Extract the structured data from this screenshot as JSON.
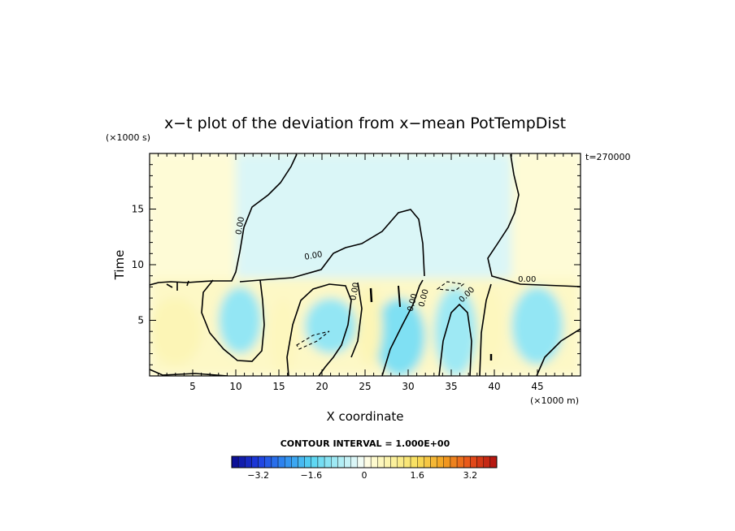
{
  "chart_data": {
    "type": "heatmap",
    "title": "x−t plot of the deviation from x−mean PotTempDist",
    "xlabel": "X coordinate",
    "ylabel": "Time",
    "x_unit": "(×1000 m)",
    "y_unit": "(×1000 s)",
    "time_label": "t=270000",
    "xlim": [
      0,
      50
    ],
    "ylim": [
      0,
      20
    ],
    "x_ticks": [
      5,
      10,
      15,
      20,
      25,
      30,
      35,
      40,
      45
    ],
    "y_ticks": [
      5,
      10,
      15
    ],
    "contour_interval_label": "CONTOUR INTERVAL = 1.000E+00",
    "contour_labels": [
      "0.00",
      "0.00",
      "0.00",
      "0.00",
      "0.00",
      "0.00",
      "0.00"
    ],
    "colorbar": {
      "min": -4,
      "max": 4,
      "tick_labels": [
        "−3.2",
        "−1.6",
        "0",
        "1.6",
        "3.2"
      ],
      "tick_values": [
        -3.2,
        -1.6,
        0,
        1.6,
        3.2
      ]
    },
    "regions": [
      {
        "x": [
          0,
          50
        ],
        "y": [
          8.8,
          20
        ],
        "value": 0.2,
        "note": "upper left/right background"
      },
      {
        "x": [
          10,
          42
        ],
        "y": [
          8.8,
          20
        ],
        "value": -0.3,
        "note": "upper central cool tongue"
      },
      {
        "x": [
          0,
          50
        ],
        "y": [
          0,
          8.8
        ],
        "value": 0.4,
        "note": "lower mixed layer"
      },
      {
        "x": [
          8,
          13
        ],
        "y": [
          2,
          8
        ],
        "value": -1.0
      },
      {
        "x": [
          18,
          24
        ],
        "y": [
          2,
          7
        ],
        "value": -1.0
      },
      {
        "x": [
          26,
          32
        ],
        "y": [
          0,
          7
        ],
        "value": -1.2
      },
      {
        "x": [
          33,
          38
        ],
        "y": [
          0,
          8
        ],
        "value": -0.9
      },
      {
        "x": [
          42,
          48
        ],
        "y": [
          1,
          8
        ],
        "value": -1.0
      },
      {
        "x": [
          0,
          6
        ],
        "y": [
          1,
          7
        ],
        "value": 0.6
      },
      {
        "x": [
          14,
          17
        ],
        "y": [
          0,
          7
        ],
        "value": 0.5
      },
      {
        "x": [
          24,
          27
        ],
        "y": [
          1,
          8
        ],
        "value": 0.6
      },
      {
        "x": [
          38,
          41
        ],
        "y": [
          1,
          8
        ],
        "value": 0.5
      }
    ]
  }
}
